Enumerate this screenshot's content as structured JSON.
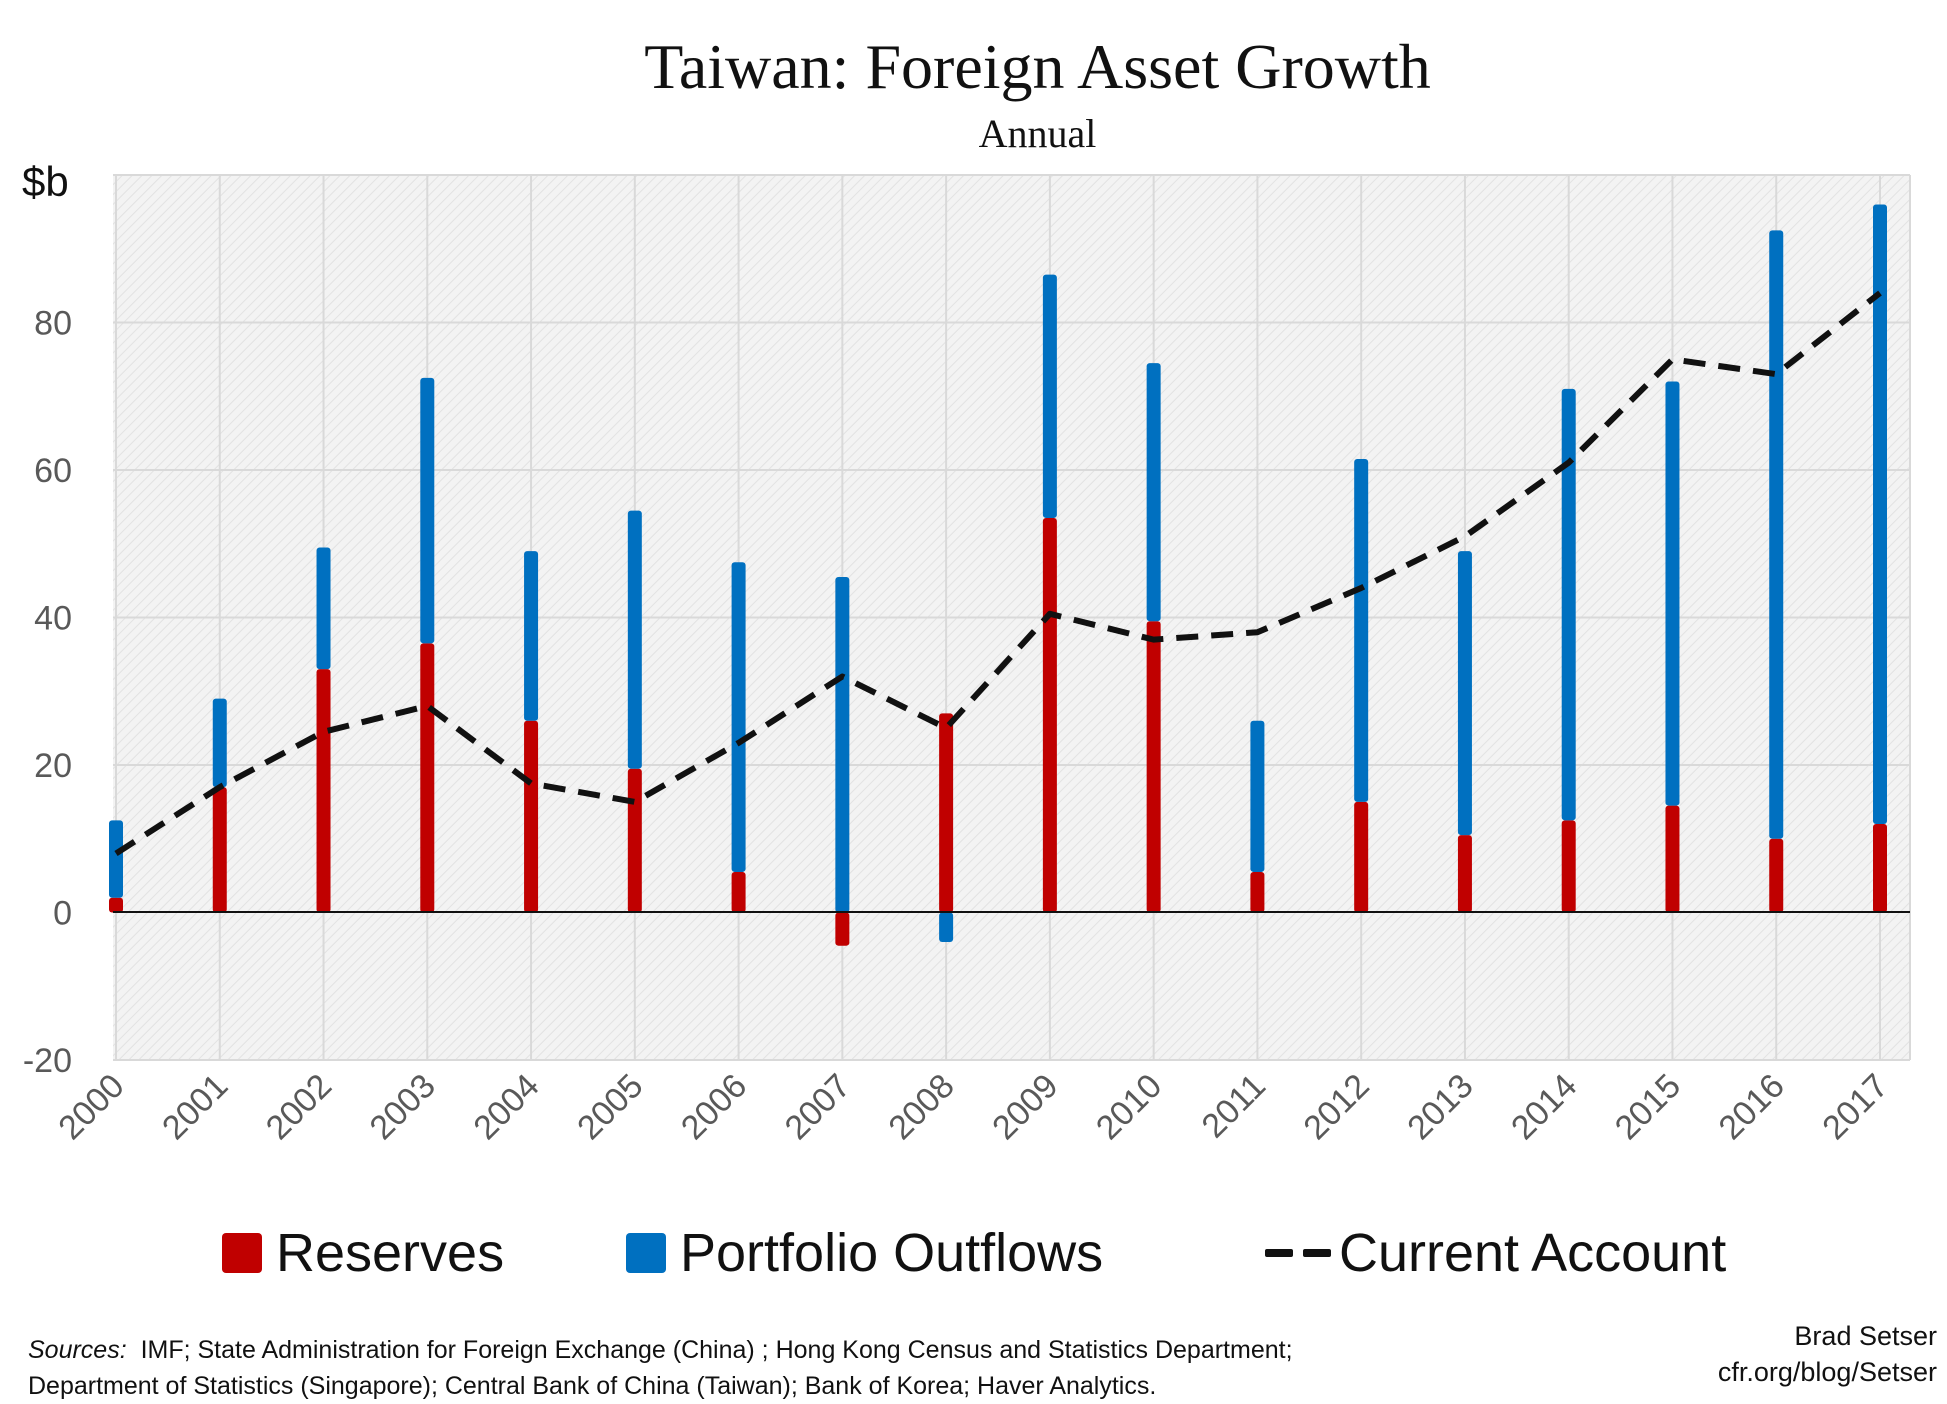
{
  "header": {
    "title": "Taiwan: Foreign Asset Growth",
    "subtitle": "Annual"
  },
  "axis": {
    "y_unit_label": "$b"
  },
  "legend": {
    "reserves": "Reserves",
    "portfolio": "Portfolio Outflows",
    "current_account": "Current Account"
  },
  "colors": {
    "reserves": "#C00000",
    "portfolio": "#0070C0",
    "current_account": "#111111",
    "plot_background": "#F2F2F2",
    "gridline": "#D9D9D9"
  },
  "footer": {
    "sources_label": "Sources:",
    "sources_line1": "IMF; State Administration for Foreign Exchange (China) ; Hong Kong Census and Statistics Department;",
    "sources_line2": "Department of Statistics (Singapore); Central Bank of China (Taiwan); Bank of Korea; Haver Analytics.",
    "author": "Brad Setser",
    "link": "cfr.org/blog/Setser"
  },
  "chart_data": {
    "type": "bar",
    "stacked": true,
    "title": "Taiwan: Foreign Asset Growth",
    "subtitle": "Annual",
    "ylabel": "$b",
    "xlabel": "",
    "ylim": [
      -20,
      100
    ],
    "yticks": [
      -20,
      0,
      20,
      40,
      60,
      80
    ],
    "grid": true,
    "legend_position": "bottom",
    "categories": [
      "2000",
      "2001",
      "2002",
      "2003",
      "2004",
      "2005",
      "2006",
      "2007",
      "2008",
      "2009",
      "2010",
      "2011",
      "2012",
      "2013",
      "2014",
      "2015",
      "2016",
      "2017"
    ],
    "series": [
      {
        "name": "Reserves",
        "type": "bar",
        "values": [
          2,
          17,
          33,
          36.5,
          26,
          19.5,
          5.5,
          -4.5,
          27,
          53.5,
          39.5,
          5.5,
          15,
          10.5,
          12.5,
          14.5,
          10,
          12
        ]
      },
      {
        "name": "Portfolio Outflows",
        "type": "bar",
        "values": [
          10.5,
          12,
          16.5,
          36,
          23,
          35,
          42,
          45.5,
          -4,
          33,
          35,
          20.5,
          46.5,
          38.5,
          58.5,
          57.5,
          82.5,
          84
        ]
      },
      {
        "name": "Current Account",
        "type": "line",
        "style": "dashed",
        "values": [
          8,
          17,
          24.5,
          28,
          17.5,
          15,
          23,
          32,
          25,
          40.5,
          37,
          38,
          44,
          51,
          61,
          75,
          73,
          84
        ]
      }
    ]
  }
}
